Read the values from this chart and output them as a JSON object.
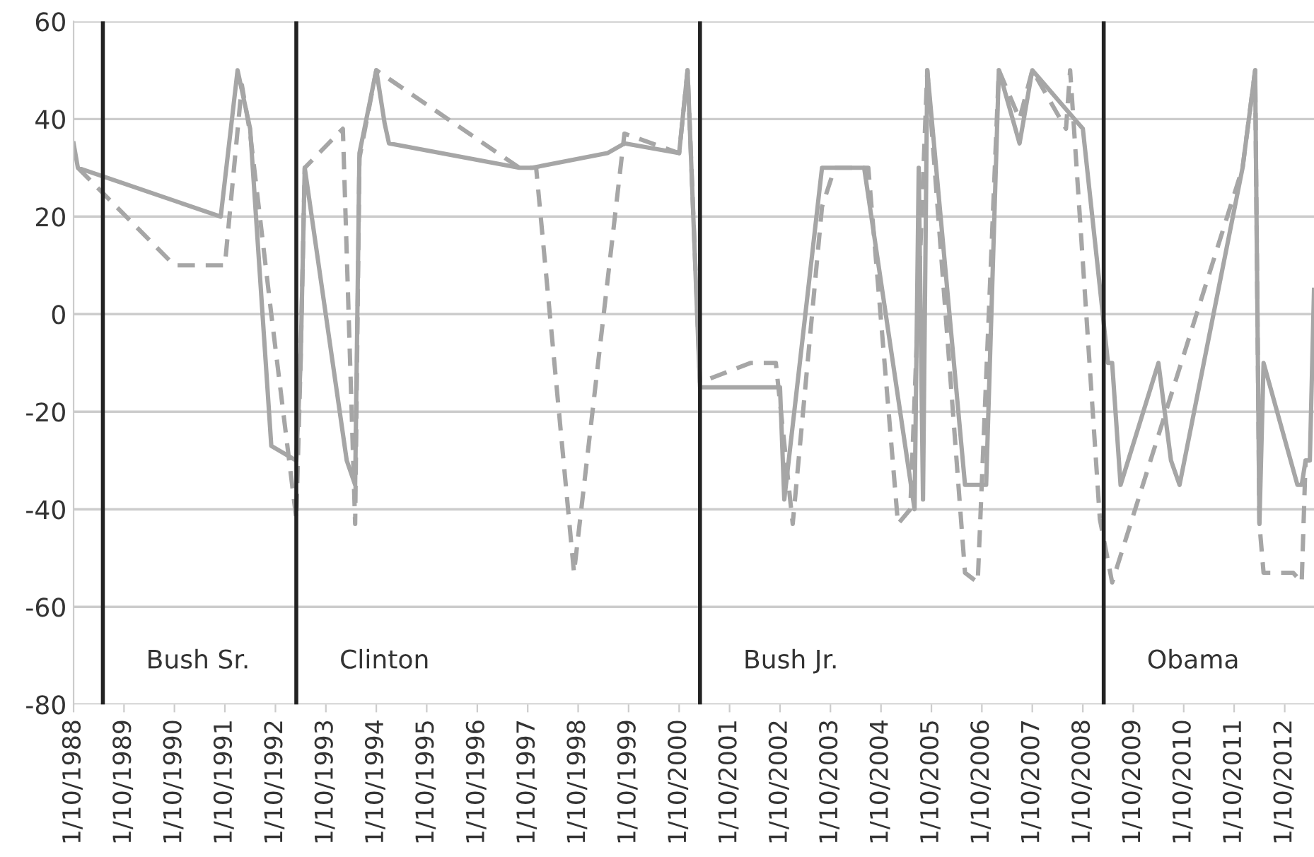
{
  "chart_data": {
    "type": "line",
    "ylim": [
      -80,
      60
    ],
    "yticks": [
      -80,
      -60,
      -40,
      -20,
      0,
      20,
      40,
      60
    ],
    "grid": "y",
    "xlim": [
      "1988-10-01",
      "2013-05-01"
    ],
    "xticks": [
      {
        "value": "1988-10-01",
        "label": "1/10/1988"
      },
      {
        "value": "1989-10-01",
        "label": "1/10/1989"
      },
      {
        "value": "1990-10-01",
        "label": "1/10/1990"
      },
      {
        "value": "1991-10-01",
        "label": "1/10/1991"
      },
      {
        "value": "1992-10-01",
        "label": "1/10/1992"
      },
      {
        "value": "1993-10-01",
        "label": "1/10/1993"
      },
      {
        "value": "1994-10-01",
        "label": "1/10/1994"
      },
      {
        "value": "1995-10-01",
        "label": "1/10/1995"
      },
      {
        "value": "1996-10-01",
        "label": "1/10/1996"
      },
      {
        "value": "1997-10-01",
        "label": "1/10/1997"
      },
      {
        "value": "1998-10-01",
        "label": "1/10/1998"
      },
      {
        "value": "1999-10-01",
        "label": "1/10/1999"
      },
      {
        "value": "2000-10-01",
        "label": "1/10/2000"
      },
      {
        "value": "2001-10-01",
        "label": "1/10/2001"
      },
      {
        "value": "2002-10-01",
        "label": "1/10/2002"
      },
      {
        "value": "2003-10-01",
        "label": "1/10/2003"
      },
      {
        "value": "2004-10-01",
        "label": "1/10/2004"
      },
      {
        "value": "2005-10-01",
        "label": "1/10/2005"
      },
      {
        "value": "2006-10-01",
        "label": "1/10/2006"
      },
      {
        "value": "2007-10-01",
        "label": "1/10/2007"
      },
      {
        "value": "2008-10-01",
        "label": "1/10/2008"
      },
      {
        "value": "2009-10-01",
        "label": "1/10/2009"
      },
      {
        "value": "2010-10-01",
        "label": "1/10/2010"
      },
      {
        "value": "2011-10-01",
        "label": "1/10/2011"
      },
      {
        "value": "2012-10-01",
        "label": "1/10/2012"
      }
    ],
    "ref_lines": [
      {
        "axis": "x",
        "value": "1989-05",
        "label": "Bush Sr.",
        "color": "#222222"
      },
      {
        "axis": "x",
        "value": "1993-03",
        "label": "Clinton",
        "color": "#222222"
      },
      {
        "axis": "x",
        "value": "2001-03",
        "label": "Bush Jr.",
        "color": "#222222"
      },
      {
        "axis": "x",
        "value": "2009-03",
        "label": "Obama",
        "color": "#222222"
      }
    ],
    "series": [
      {
        "color": "#a6a6a6",
        "line_style": "solid",
        "x": [
          "1988-10-01",
          "1988-11",
          "1991-09",
          "1992-01",
          "1992-04",
          "1992-09",
          "1993-03",
          "1993-04",
          "1993-05",
          "1994-03",
          "1994-05",
          "1994-06",
          "1994-10",
          "1994-12",
          "1995-01",
          "1997-08",
          "1997-11",
          "1999-05",
          "1999-09",
          "2000-10",
          "2000-12",
          "2001-03",
          "2002-10",
          "2002-11",
          "2003-08",
          "2004-06",
          "2005-06",
          "2005-07",
          "2005-08",
          "2005-09",
          "2006-06",
          "2006-11",
          "2007-02",
          "2007-07",
          "2007-10",
          "2008-10",
          "2009-04",
          "2009-05",
          "2009-07",
          "2010-04",
          "2010-07",
          "2010-09",
          "2011-12",
          "2012-03",
          "2012-04",
          "2012-05",
          "2013-01",
          "2013-02",
          "2013-03",
          "2013-04",
          "2013-05-01"
        ],
        "values": [
          35,
          30,
          20,
          50,
          38,
          -27,
          -30,
          -10,
          30,
          -30,
          -35,
          33,
          50,
          39,
          35,
          30,
          30,
          33,
          35,
          33,
          50,
          -15,
          -15,
          -38,
          30,
          30,
          -40,
          30,
          -38,
          50,
          -35,
          -35,
          50,
          35,
          50,
          38,
          -10,
          -10,
          -35,
          -10,
          -30,
          -35,
          30,
          50,
          -43,
          -10,
          -35,
          -35,
          -30,
          -30,
          5
        ]
      },
      {
        "color": "#a6a6a6",
        "line_style": "dashed",
        "x": [
          "1988-11",
          "1990-10",
          "1991-10",
          "1992-02",
          "1992-04",
          "1992-09",
          "1993-03",
          "1993-04",
          "1993-05",
          "1994-02",
          "1994-05",
          "1994-06",
          "1994-10",
          "1997-08",
          "1997-12",
          "1998-09",
          "1999-09",
          "2000-10",
          "2000-12",
          "2001-03",
          "2002-03",
          "2002-09",
          "2003-01",
          "2003-08",
          "2003-11",
          "2004-07",
          "2005-02",
          "2005-05",
          "2005-09",
          "2006-06",
          "2006-09",
          "2007-02",
          "2007-07",
          "2007-10",
          "2008-06",
          "2008-07",
          "2009-02",
          "2009-05",
          "2011-12",
          "2012-03",
          "2012-04",
          "2012-05",
          "2012-12",
          "2013-02",
          "2013-03",
          "2013-04"
        ],
        "values": [
          30,
          10,
          10,
          47,
          37,
          0,
          -42,
          -10,
          30,
          38,
          -43,
          32,
          50,
          30,
          30,
          -53,
          37,
          33,
          50,
          -14,
          -10,
          -10,
          -43,
          22,
          30,
          30,
          -43,
          -40,
          50,
          -53,
          -55,
          50,
          40,
          50,
          38,
          50,
          -42,
          -55,
          30,
          50,
          -43,
          -53,
          -53,
          -55,
          -30,
          -30
        ]
      }
    ]
  }
}
